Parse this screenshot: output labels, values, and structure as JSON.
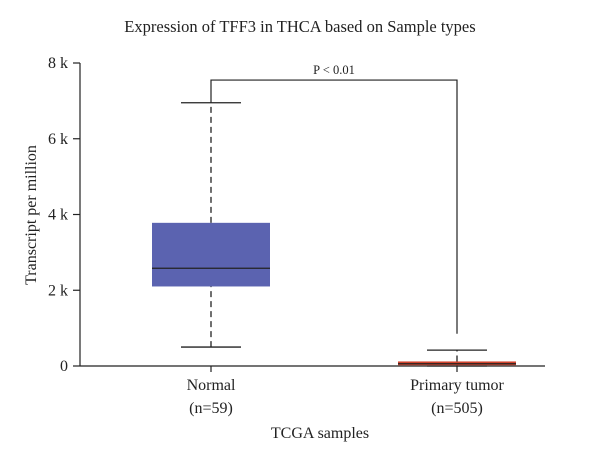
{
  "chart_data": {
    "type": "boxplot",
    "title": "Expression of TFF3 in THCA based on Sample types",
    "xlabel": "TCGA samples",
    "ylabel": "Transcript per million",
    "ylim": [
      0,
      8000
    ],
    "yticks": [
      {
        "value": 0,
        "label": "0"
      },
      {
        "value": 2000,
        "label": "2 k"
      },
      {
        "value": 4000,
        "label": "4 k"
      },
      {
        "value": 6000,
        "label": "6 k"
      },
      {
        "value": 8000,
        "label": "8 k"
      }
    ],
    "categories": [
      {
        "label": "Normal",
        "n_label": "(n=59)",
        "color": "#5b63b0",
        "min": 500,
        "q1": 2100,
        "median": 2580,
        "q3": 3780,
        "max": 6950
      },
      {
        "label": "Primary tumor",
        "n_label": "(n=505)",
        "color": "#d0432d",
        "min": 0,
        "q1": 20,
        "median": 60,
        "q3": 120,
        "max": 420
      }
    ],
    "significance": {
      "label": "P < 0.01",
      "level": 7550,
      "left_end": 6950,
      "right_end": 850
    }
  }
}
